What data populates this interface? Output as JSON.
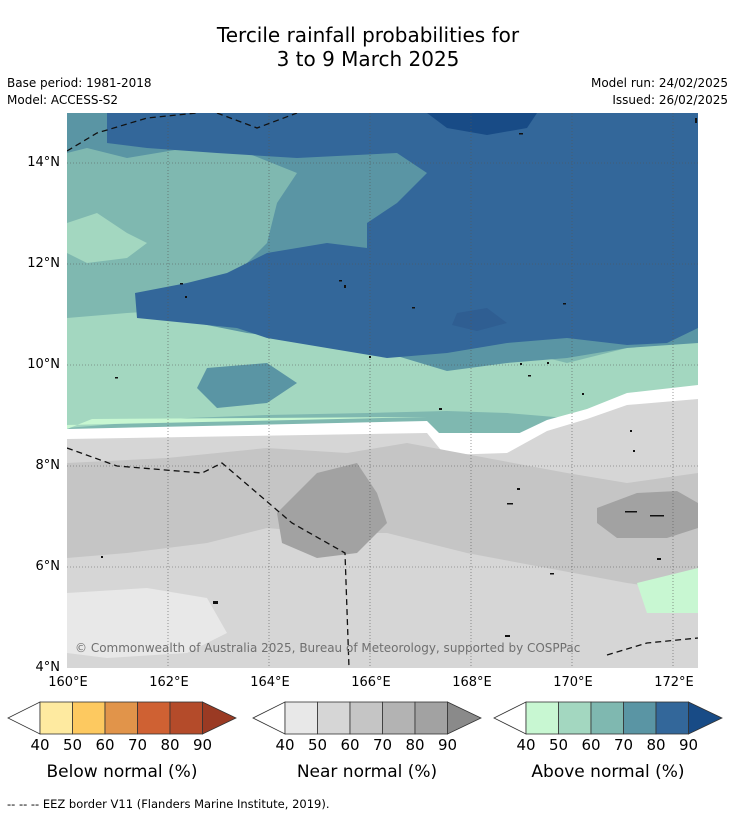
{
  "title": {
    "line1": "Tercile rainfall probabilities for",
    "line2": "3 to 9 March 2025"
  },
  "meta": {
    "base_period": "Base period: 1981-2018",
    "model": "Model: ACCESS-S2",
    "model_run": "Model run: 24/02/2025",
    "issued": "Issued: 26/02/2025"
  },
  "map": {
    "lat_labels": [
      "14°N",
      "12°N",
      "10°N",
      "8°N",
      "6°N",
      "4°N"
    ],
    "lon_labels": [
      "160°E",
      "162°E",
      "164°E",
      "166°E",
      "168°E",
      "170°E",
      "172°E"
    ],
    "copyright": "© Commonwealth of Australia 2025, Bureau of Meteorology, supported by COSPPac"
  },
  "legends": [
    {
      "title": "Below normal (%)",
      "ticks": [
        "40",
        "50",
        "60",
        "70",
        "80",
        "90"
      ],
      "colors": [
        "#feeaa0",
        "#fdc960",
        "#e1944a",
        "#cf6133",
        "#b44b2a",
        "#9a3a23"
      ]
    },
    {
      "title": "Near normal (%)",
      "ticks": [
        "40",
        "50",
        "60",
        "70",
        "80",
        "90"
      ],
      "colors": [
        "#e8e8e8",
        "#d6d6d6",
        "#c5c5c5",
        "#b3b3b3",
        "#a2a2a2",
        "#8a8a8a"
      ]
    },
    {
      "title": "Above normal (%)",
      "ticks": [
        "40",
        "50",
        "60",
        "70",
        "80",
        "90"
      ],
      "colors": [
        "#c8f7d2",
        "#a3d7c0",
        "#7fb8b0",
        "#5a95a4",
        "#33679a",
        "#184b86"
      ]
    }
  ],
  "footnote": "--  --  -- EEZ border V11 (Flanders Marine Institute, 2019)."
}
